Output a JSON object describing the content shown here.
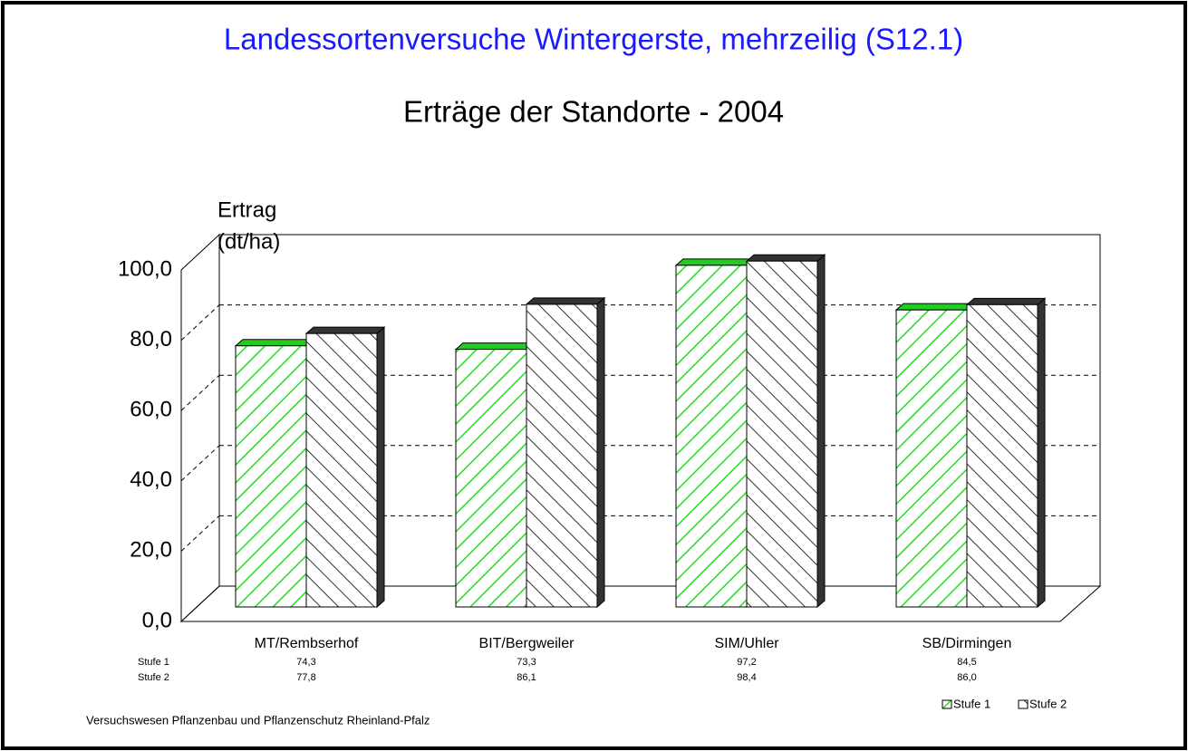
{
  "chart_data": {
    "type": "bar3d",
    "title": "Landessortenversuche Wintergerste, mehrzeilig (S12.1)",
    "subtitle": "Erträge der Standorte  - 2004",
    "y_label": [
      "Ertrag",
      "(dt/ha)"
    ],
    "footer": "Versuchswesen Pflanzenbau und Pflanzenschutz Rheinland-Pfalz",
    "categories": [
      "MT/Rembserhof",
      "BIT/Bergweiler",
      "SIM/Uhler",
      "SB/Dirmingen"
    ],
    "series": [
      {
        "name": "Stufe 1",
        "color": "#22cc22",
        "values": [
          74.3,
          73.3,
          97.2,
          84.5
        ],
        "value_labels": [
          "74,3",
          "73,3",
          "97,2",
          "84,5"
        ]
      },
      {
        "name": "Stufe 2",
        "color": "#333333",
        "values": [
          77.8,
          86.1,
          98.4,
          86.0
        ],
        "value_labels": [
          "77,8",
          "86,1",
          "98,4",
          "86,0"
        ]
      }
    ],
    "ylim": [
      0,
      100
    ],
    "yticks": [
      {
        "value": 0,
        "label": "0,0"
      },
      {
        "value": 20,
        "label": "20,0"
      },
      {
        "value": 40,
        "label": "40,0"
      },
      {
        "value": 60,
        "label": "60,0"
      },
      {
        "value": 80,
        "label": "80,0"
      },
      {
        "value": 100,
        "label": "100,0"
      }
    ],
    "grid": true,
    "legend": "bottom-right"
  }
}
